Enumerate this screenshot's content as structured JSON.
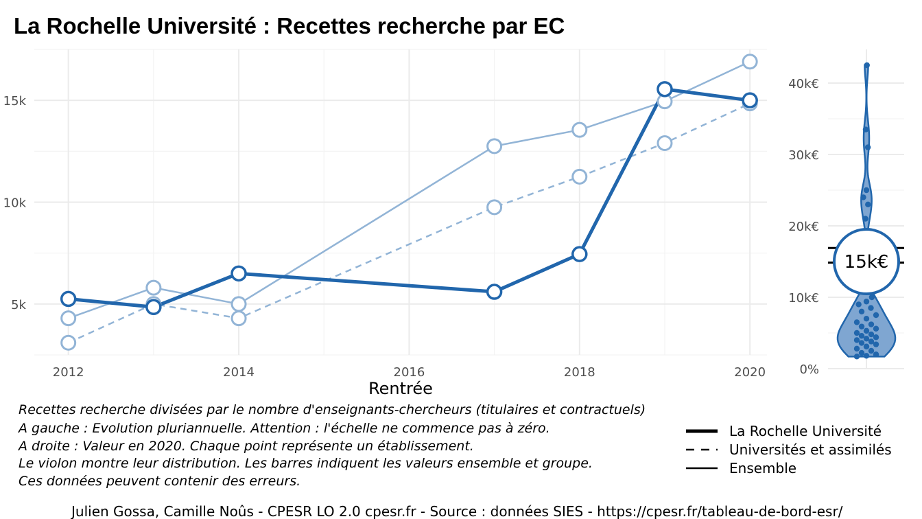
{
  "title": "La Rochelle Université  :  Recettes recherche par EC",
  "colors": {
    "dark": "#2166ac",
    "light": "#92b4d6",
    "grid": "#ebebeb",
    "violin_fill": "#7fa6d1",
    "violin_stroke": "#2166ac"
  },
  "chart_data": [
    {
      "type": "line",
      "xlabel": "Rentrée",
      "ylabel": "",
      "xlim": [
        2011.6,
        2020.2
      ],
      "ylim": [
        2500,
        17500
      ],
      "x_ticks": [
        2012,
        2014,
        2016,
        2018,
        2020
      ],
      "x_tick_labels": [
        "2012",
        "2014",
        "2016",
        "2018",
        "2020"
      ],
      "y_ticks": [
        5000,
        10000,
        15000
      ],
      "y_tick_labels": [
        "5k",
        "10k",
        "15k"
      ],
      "grid": true,
      "legend_position": "bottom-right",
      "series": [
        {
          "name": "La Rochelle Université",
          "style": "thick-solid",
          "x": [
            2012,
            2013,
            2014,
            2017,
            2018,
            2019,
            2020
          ],
          "y": [
            5250,
            4850,
            6500,
            5600,
            7450,
            15550,
            15000
          ]
        },
        {
          "name": "Universités et assimilés",
          "style": "dashed",
          "x": [
            2012,
            2013,
            2014,
            2017,
            2018,
            2019,
            2020
          ],
          "y": [
            3100,
            5000,
            4300,
            9750,
            11250,
            12900,
            14850
          ]
        },
        {
          "name": "Ensemble",
          "style": "thin-solid",
          "x": [
            2012,
            2013,
            2014,
            2017,
            2018,
            2019,
            2020
          ],
          "y": [
            4300,
            5800,
            5000,
            12750,
            13550,
            14950,
            16900
          ]
        }
      ]
    },
    {
      "type": "violin",
      "ylim": [
        0,
        44000
      ],
      "y_ticks": [
        0,
        10000,
        20000,
        30000,
        40000
      ],
      "y_tick_labels": [
        "0%",
        "10k€",
        "20k€",
        "30k€",
        "40k€"
      ],
      "highlight_value": 15000,
      "highlight_label": "15k€",
      "ensemble_value": 16900,
      "group_value": 14850,
      "points": [
        1700,
        1800,
        2000,
        2200,
        2500,
        2800,
        3100,
        3400,
        3600,
        3800,
        4000,
        4200,
        4400,
        4600,
        4800,
        5000,
        5300,
        5600,
        5900,
        6200,
        6500,
        7000,
        7500,
        8000,
        8500,
        9000,
        9400,
        10000,
        21000,
        23000,
        24000,
        25000,
        31000,
        33500,
        42500
      ]
    }
  ],
  "notes": [
    "Recettes recherche divisées par le nombre d'enseignants-chercheurs (titulaires et contractuels)",
    "A gauche : Evolution pluriannuelle. Attention : l'échelle ne commence pas à zéro.",
    "A droite : Valeur en 2020. Chaque point représente un établissement.",
    "Le violon montre leur distribution. Les barres indiquent les valeurs ensemble et groupe.",
    "Ces données peuvent contenir des erreurs."
  ],
  "caption": "Julien Gossa, Camille Noûs - CPESR LO 2.0 cpesr.fr - Source : données SIES - https://cpesr.fr/tableau-de-bord-esr/"
}
